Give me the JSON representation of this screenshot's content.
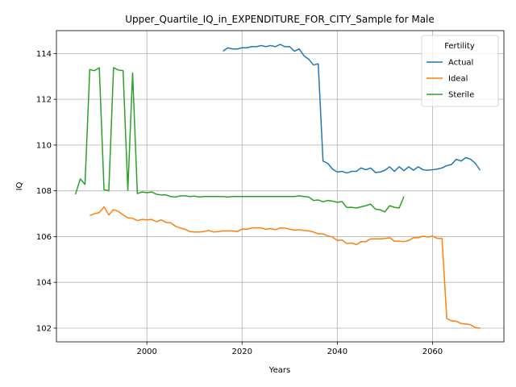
{
  "chart_data": {
    "type": "line",
    "title": "Upper_Quartile_IQ_in_EXPENDITURE_FOR_CITY_Sample for Male",
    "xlabel": "Years",
    "ylabel": "IQ",
    "xlim": [
      1981,
      2075
    ],
    "ylim": [
      101.4,
      115.0
    ],
    "xticks": [
      2000,
      2020,
      2040,
      2060
    ],
    "yticks": [
      102,
      104,
      106,
      108,
      110,
      112,
      114
    ],
    "grid": true,
    "legend": {
      "title": "Fertility",
      "placement": "upper right"
    },
    "series": [
      {
        "name": "Actual",
        "color": "#1f77b4",
        "points": [
          [
            2016,
            114.1
          ],
          [
            2017,
            114.25
          ],
          [
            2018,
            114.2
          ],
          [
            2019,
            114.2
          ],
          [
            2020,
            114.25
          ],
          [
            2021,
            114.25
          ],
          [
            2022,
            114.3
          ],
          [
            2023,
            114.3
          ],
          [
            2024,
            114.35
          ],
          [
            2025,
            114.3
          ],
          [
            2026,
            114.35
          ],
          [
            2027,
            114.3
          ],
          [
            2028,
            114.4
          ],
          [
            2029,
            114.3
          ],
          [
            2030,
            114.3
          ],
          [
            2031,
            114.1
          ],
          [
            2032,
            114.2
          ],
          [
            2033,
            113.9
          ],
          [
            2034,
            113.75
          ],
          [
            2035,
            113.5
          ],
          [
            2036,
            113.55
          ],
          [
            2037,
            109.3
          ],
          [
            2038,
            109.2
          ],
          [
            2039,
            108.95
          ],
          [
            2040,
            108.82
          ],
          [
            2041,
            108.85
          ],
          [
            2042,
            108.78
          ],
          [
            2043,
            108.85
          ],
          [
            2044,
            108.85
          ],
          [
            2045,
            109.0
          ],
          [
            2046,
            108.92
          ],
          [
            2047,
            109.0
          ],
          [
            2048,
            108.8
          ],
          [
            2049,
            108.82
          ],
          [
            2050,
            108.9
          ],
          [
            2051,
            109.05
          ],
          [
            2052,
            108.85
          ],
          [
            2053,
            109.05
          ],
          [
            2054,
            108.88
          ],
          [
            2055,
            109.05
          ],
          [
            2056,
            108.9
          ],
          [
            2057,
            109.05
          ],
          [
            2058,
            108.92
          ],
          [
            2059,
            108.9
          ],
          [
            2060,
            108.92
          ],
          [
            2061,
            108.95
          ],
          [
            2062,
            109.0
          ],
          [
            2063,
            109.1
          ],
          [
            2064,
            109.15
          ],
          [
            2065,
            109.38
          ],
          [
            2066,
            109.3
          ],
          [
            2067,
            109.45
          ],
          [
            2068,
            109.38
          ],
          [
            2069,
            109.2
          ],
          [
            2070,
            108.9
          ]
        ]
      },
      {
        "name": "Ideal",
        "color": "#ff7f0e",
        "points": [
          [
            1988,
            106.92
          ],
          [
            1989,
            107.0
          ],
          [
            1990,
            107.05
          ],
          [
            1991,
            107.3
          ],
          [
            1992,
            106.95
          ],
          [
            1993,
            107.18
          ],
          [
            1994,
            107.1
          ],
          [
            1995,
            106.95
          ],
          [
            1996,
            106.82
          ],
          [
            1997,
            106.8
          ],
          [
            1998,
            106.7
          ],
          [
            1999,
            106.75
          ],
          [
            2000,
            106.73
          ],
          [
            2001,
            106.75
          ],
          [
            2002,
            106.65
          ],
          [
            2003,
            106.73
          ],
          [
            2004,
            106.62
          ],
          [
            2005,
            106.6
          ],
          [
            2006,
            106.45
          ],
          [
            2007,
            106.38
          ],
          [
            2008,
            106.32
          ],
          [
            2009,
            106.22
          ],
          [
            2010,
            106.2
          ],
          [
            2011,
            106.2
          ],
          [
            2012,
            106.22
          ],
          [
            2013,
            106.27
          ],
          [
            2014,
            106.2
          ],
          [
            2015,
            106.22
          ],
          [
            2016,
            106.25
          ],
          [
            2017,
            106.25
          ],
          [
            2018,
            106.25
          ],
          [
            2019,
            106.22
          ],
          [
            2020,
            106.33
          ],
          [
            2021,
            106.32
          ],
          [
            2022,
            106.38
          ],
          [
            2023,
            106.38
          ],
          [
            2024,
            106.38
          ],
          [
            2025,
            106.32
          ],
          [
            2026,
            106.35
          ],
          [
            2027,
            106.3
          ],
          [
            2028,
            106.38
          ],
          [
            2029,
            106.37
          ],
          [
            2030,
            106.32
          ],
          [
            2031,
            106.28
          ],
          [
            2032,
            106.3
          ],
          [
            2033,
            106.27
          ],
          [
            2034,
            106.25
          ],
          [
            2035,
            106.2
          ],
          [
            2036,
            106.12
          ],
          [
            2037,
            106.12
          ],
          [
            2038,
            106.03
          ],
          [
            2039,
            105.98
          ],
          [
            2040,
            105.83
          ],
          [
            2041,
            105.85
          ],
          [
            2042,
            105.7
          ],
          [
            2043,
            105.72
          ],
          [
            2044,
            105.65
          ],
          [
            2045,
            105.78
          ],
          [
            2046,
            105.78
          ],
          [
            2047,
            105.9
          ],
          [
            2048,
            105.9
          ],
          [
            2049,
            105.9
          ],
          [
            2050,
            105.92
          ],
          [
            2051,
            105.95
          ],
          [
            2052,
            105.8
          ],
          [
            2053,
            105.8
          ],
          [
            2054,
            105.78
          ],
          [
            2055,
            105.83
          ],
          [
            2056,
            105.95
          ],
          [
            2057,
            105.95
          ],
          [
            2058,
            106.02
          ],
          [
            2059,
            105.98
          ],
          [
            2060,
            106.02
          ],
          [
            2061,
            105.92
          ],
          [
            2062,
            105.92
          ],
          [
            2063,
            102.42
          ],
          [
            2064,
            102.32
          ],
          [
            2065,
            102.3
          ],
          [
            2066,
            102.2
          ],
          [
            2067,
            102.18
          ],
          [
            2068,
            102.15
          ],
          [
            2069,
            102.02
          ],
          [
            2070,
            102.0
          ]
        ]
      },
      {
        "name": "Sterile",
        "color": "#2ca02c",
        "points": [
          [
            1985,
            107.85
          ],
          [
            1986,
            108.52
          ],
          [
            1987,
            108.28
          ],
          [
            1988,
            113.3
          ],
          [
            1989,
            113.25
          ],
          [
            1990,
            113.38
          ],
          [
            1991,
            108.05
          ],
          [
            1992,
            108.0
          ],
          [
            1993,
            113.38
          ],
          [
            1994,
            113.28
          ],
          [
            1995,
            113.25
          ],
          [
            1996,
            108.02
          ],
          [
            1997,
            113.15
          ],
          [
            1998,
            107.88
          ],
          [
            1999,
            107.95
          ],
          [
            2000,
            107.92
          ],
          [
            2001,
            107.95
          ],
          [
            2002,
            107.85
          ],
          [
            2003,
            107.82
          ],
          [
            2004,
            107.82
          ],
          [
            2005,
            107.75
          ],
          [
            2006,
            107.73
          ],
          [
            2007,
            107.78
          ],
          [
            2008,
            107.78
          ],
          [
            2009,
            107.75
          ],
          [
            2010,
            107.77
          ],
          [
            2011,
            107.73
          ],
          [
            2012,
            107.75
          ],
          [
            2013,
            107.75
          ],
          [
            2014,
            107.75
          ],
          [
            2015,
            107.75
          ],
          [
            2016,
            107.75
          ],
          [
            2017,
            107.73
          ],
          [
            2018,
            107.75
          ],
          [
            2019,
            107.75
          ],
          [
            2020,
            107.75
          ],
          [
            2021,
            107.75
          ],
          [
            2022,
            107.75
          ],
          [
            2023,
            107.75
          ],
          [
            2024,
            107.75
          ],
          [
            2025,
            107.75
          ],
          [
            2026,
            107.75
          ],
          [
            2027,
            107.75
          ],
          [
            2028,
            107.75
          ],
          [
            2029,
            107.75
          ],
          [
            2030,
            107.75
          ],
          [
            2031,
            107.75
          ],
          [
            2032,
            107.78
          ],
          [
            2033,
            107.75
          ],
          [
            2034,
            107.73
          ],
          [
            2035,
            107.58
          ],
          [
            2036,
            107.6
          ],
          [
            2037,
            107.52
          ],
          [
            2038,
            107.58
          ],
          [
            2039,
            107.55
          ],
          [
            2040,
            107.5
          ],
          [
            2041,
            107.53
          ],
          [
            2042,
            107.27
          ],
          [
            2043,
            107.28
          ],
          [
            2044,
            107.25
          ],
          [
            2045,
            107.3
          ],
          [
            2046,
            107.35
          ],
          [
            2047,
            107.42
          ],
          [
            2048,
            107.2
          ],
          [
            2049,
            107.17
          ],
          [
            2050,
            107.08
          ],
          [
            2051,
            107.35
          ],
          [
            2052,
            107.28
          ],
          [
            2053,
            107.25
          ],
          [
            2054,
            107.75
          ]
        ]
      }
    ]
  }
}
